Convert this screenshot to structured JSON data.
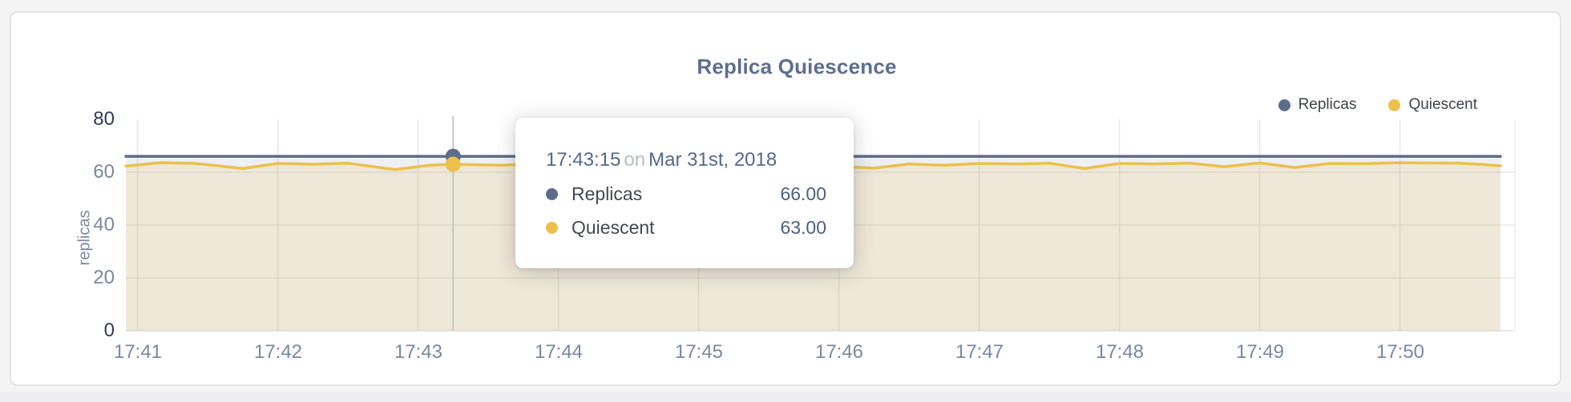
{
  "page": {
    "background": "#f5f4f5",
    "card_background": "#ffffff",
    "card_border": "#e4e3e4",
    "bottom_strip_color": "#eeedef"
  },
  "chart": {
    "title": "Replica Quiescence",
    "y_axis_title": "replicas",
    "legend": {
      "items": [
        {
          "label": "Replicas",
          "color": "#5e6c8c"
        },
        {
          "label": "Quiescent",
          "color": "#ecc04b"
        }
      ]
    },
    "axis_colors": {
      "tick_default": "#7b87a0",
      "tick_minmax": "#2e3c58",
      "gridline": "#e7e7e7",
      "baseline": "#e2e2e2",
      "crosshair": "#c6c6c6"
    }
  },
  "tooltip": {
    "time": "17:43:15",
    "conjunction": "on",
    "date": "Mar 31st, 2018",
    "rows": [
      {
        "label": "Replicas",
        "value": "66.00",
        "color": "#5e6c8c"
      },
      {
        "label": "Quiescent",
        "value": "63.00",
        "color": "#ecc04b"
      }
    ]
  },
  "chart_data": {
    "type": "area",
    "title": "Replica Quiescence",
    "xlabel": "",
    "ylabel": "replicas",
    "ylim": [
      0,
      80
    ],
    "yticks": [
      0,
      20,
      40,
      60,
      80
    ],
    "xticks": [
      "17:41",
      "17:42",
      "17:43",
      "17:44",
      "17:45",
      "17:46",
      "17:47",
      "17:48",
      "17:49",
      "17:50"
    ],
    "x_domain": [
      "17:40:55",
      "17:50:43"
    ],
    "date": "Mar 31st, 2018",
    "grid": true,
    "legend_position": "top-right",
    "times": [
      "17:40:55",
      "17:41:10",
      "17:41:25",
      "17:41:45",
      "17:42:00",
      "17:42:15",
      "17:42:30",
      "17:42:50",
      "17:43:05",
      "17:43:15",
      "17:43:35",
      "17:43:50",
      "17:44:05",
      "17:44:20",
      "17:44:35",
      "17:44:50",
      "17:45:05",
      "17:45:20",
      "17:45:35",
      "17:45:50",
      "17:46:15",
      "17:46:30",
      "17:46:45",
      "17:47:00",
      "17:47:15",
      "17:47:30",
      "17:47:45",
      "17:48:00",
      "17:48:15",
      "17:48:30",
      "17:48:45",
      "17:49:00",
      "17:49:15",
      "17:49:30",
      "17:49:45",
      "17:50:00",
      "17:50:10",
      "17:50:25",
      "17:50:35",
      "17:50:43"
    ],
    "series": [
      {
        "name": "Replicas",
        "color": "#5e6c8c",
        "fill": "rgba(94,108,140,0.10)",
        "values": [
          66,
          66,
          66,
          66,
          66,
          66,
          66,
          66,
          66,
          66,
          66,
          66,
          66,
          66,
          66,
          66,
          66,
          66,
          66,
          66,
          66,
          66,
          66,
          66,
          66,
          66,
          66,
          66,
          66,
          66,
          66,
          66,
          66,
          66,
          66,
          66,
          66,
          66,
          66,
          66
        ]
      },
      {
        "name": "Quiescent",
        "color": "#ecc04b",
        "fill": "rgba(236,192,75,0.16)",
        "values": [
          62.3,
          63.6,
          63.3,
          61.4,
          63.3,
          63.0,
          63.4,
          61.0,
          62.6,
          63.0,
          62.6,
          63.2,
          63.4,
          63.0,
          63.3,
          63.1,
          63.3,
          62.8,
          63.2,
          62.6,
          61.5,
          63.1,
          62.6,
          63.3,
          63.1,
          63.4,
          61.4,
          63.3,
          63.1,
          63.4,
          62.1,
          63.5,
          61.8,
          63.3,
          63.2,
          63.6,
          63.5,
          63.4,
          62.9,
          62.4
        ]
      }
    ],
    "hover": {
      "time": "17:43:15",
      "values": [
        66.0,
        63.0
      ]
    }
  }
}
